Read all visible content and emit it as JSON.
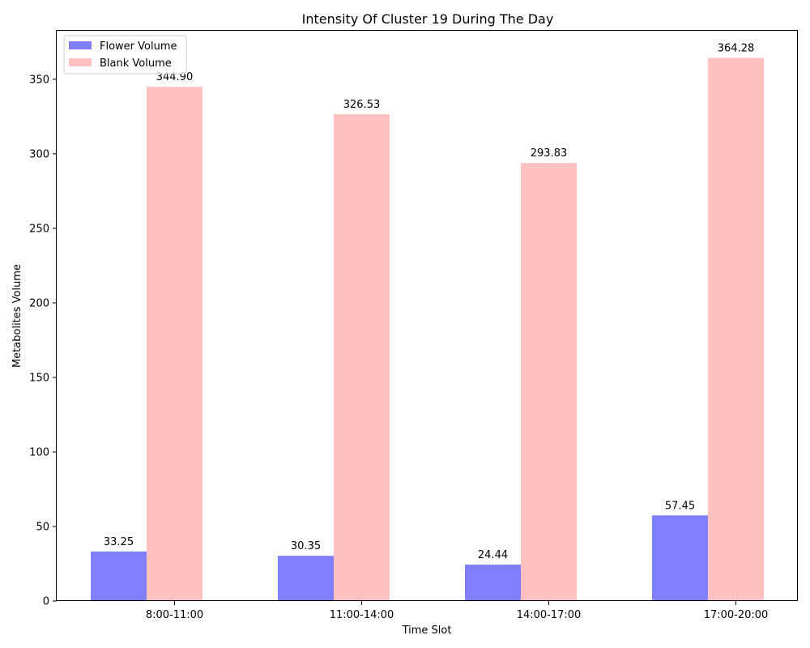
{
  "chart_data": {
    "type": "bar",
    "title": "Intensity Of Cluster 19 During The Day",
    "xlabel": "Time Slot",
    "ylabel": "Metabolites Volume",
    "categories": [
      "8:00-11:00",
      "11:00-14:00",
      "14:00-17:00",
      "17:00-20:00"
    ],
    "series": [
      {
        "name": "Flower Volume",
        "color": "#8080ff",
        "values": [
          33.25,
          30.35,
          24.44,
          57.45
        ],
        "labels": [
          "33.25",
          "30.35",
          "24.44",
          "57.45"
        ]
      },
      {
        "name": "Blank Volume",
        "color": "#ffc0c0",
        "values": [
          344.9,
          326.53,
          293.83,
          364.28
        ],
        "labels": [
          "344.90",
          "326.53",
          "293.83",
          "364.28"
        ]
      }
    ],
    "ylim": [
      0,
      382.5
    ],
    "yticks": [
      0,
      50,
      100,
      150,
      200,
      250,
      300,
      350
    ],
    "grid": false,
    "legend_position": "top-left"
  }
}
